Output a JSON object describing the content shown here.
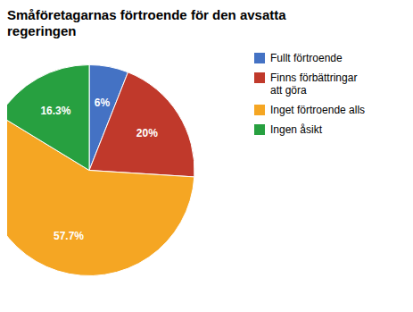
{
  "chart_data": {
    "type": "pie",
    "title": "Småföretagarnas förtroende för den avsatta\nregeringen",
    "categories": [
      "Fullt förtroende",
      "Finns förbättringar\natt göra",
      "Inget förtroende alls",
      "Ingen åsikt"
    ],
    "values": [
      6.0,
      20.0,
      57.7,
      16.3
    ],
    "value_labels": [
      "6%",
      "20%",
      "57.7%",
      "16.3%"
    ],
    "colors": [
      "#4472c4",
      "#c0392b",
      "#f5a623",
      "#27a040"
    ],
    "data_labels": true,
    "legend": "right"
  }
}
